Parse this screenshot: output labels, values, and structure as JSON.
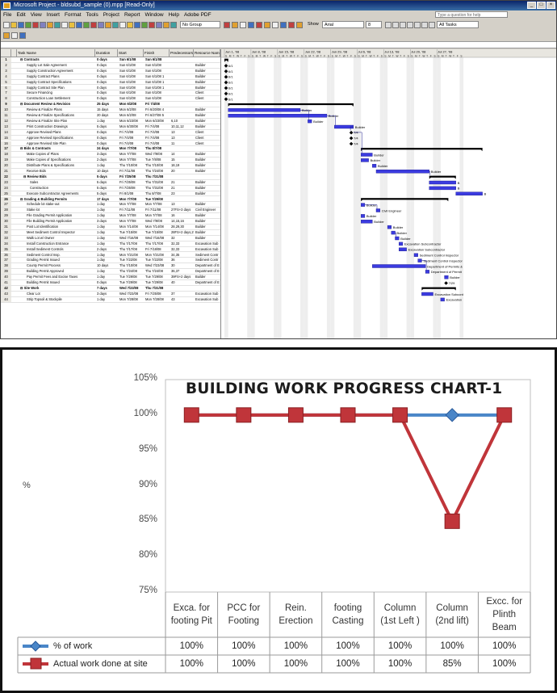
{
  "project_window": {
    "title": "Microsoft Project - bldsubd_sample (0).mpp [Read-Only]",
    "menu": [
      "File",
      "Edit",
      "View",
      "Insert",
      "Format",
      "Tools",
      "Project",
      "Report",
      "Window",
      "Help",
      "Adobe PDF"
    ],
    "help_placeholder": "Type a question for help",
    "group_combo": "No Group",
    "font_combo": "Arial",
    "size_combo": "8",
    "filter_combo": "All Tasks",
    "show_label": "Show",
    "columns": [
      "",
      "Task Name",
      "Duration",
      "Start",
      "Finish",
      "Predecessors",
      "Resource Name"
    ],
    "timescale_weeks": [
      "Jun 1, '08",
      "Jun 8, '08",
      "Jun 15, '08",
      "Jun 22, '08",
      "Jun 29, '08",
      "Jul 6, '08",
      "Jul 13, '08",
      "Jul 20, '08",
      "Jul 27, '08"
    ],
    "tasks": [
      {
        "id": "1",
        "name": "Contracts",
        "dur": "0 days",
        "start": "Sun 6/1/08",
        "finish": "Sun 6/1/08",
        "pred": "",
        "res": "",
        "summary": true,
        "indent": 0
      },
      {
        "id": "2",
        "name": "Supply Lot Sale Agreement",
        "dur": "0 days",
        "start": "Sun 6/1/08",
        "finish": "Sun 6/1/08",
        "pred": "",
        "res": "Builder",
        "summary": false,
        "indent": 2
      },
      {
        "id": "3",
        "name": "Supply Construction Agreement",
        "dur": "0 days",
        "start": "Sun 6/1/08",
        "finish": "Sun 6/1/08",
        "pred": "",
        "res": "Builder",
        "summary": false,
        "indent": 2
      },
      {
        "id": "4",
        "name": "Supply Contract Plans",
        "dur": "0 days",
        "start": "Sun 6/1/08",
        "finish": "Sun 6/1/08 1",
        "pred": "",
        "res": "Builder",
        "summary": false,
        "indent": 2
      },
      {
        "id": "5",
        "name": "Supply Contract Specifications",
        "dur": "0 days",
        "start": "Sun 6/1/08",
        "finish": "Sun 6/1/08 1",
        "pred": "",
        "res": "Builder",
        "summary": false,
        "indent": 2
      },
      {
        "id": "6",
        "name": "Supply Contract Site Plan",
        "dur": "0 days",
        "start": "Sun 6/1/08",
        "finish": "Sun 6/1/08 1",
        "pred": "",
        "res": "Builder",
        "summary": false,
        "indent": 2
      },
      {
        "id": "7",
        "name": "Secure Financing",
        "dur": "0 days",
        "start": "Sun 6/1/08",
        "finish": "Sun 6/1/08",
        "pred": "",
        "res": "Client",
        "summary": false,
        "indent": 2
      },
      {
        "id": "8",
        "name": "Construction Loan Settlement",
        "dur": "0 days",
        "start": "Sun 6/1/08",
        "finish": "Sun 6/1/08",
        "pred": "",
        "res": "Client",
        "summary": false,
        "indent": 2
      },
      {
        "id": "9",
        "name": "Document Review & Revision",
        "dur": "25 days",
        "start": "Mon 6/2/08",
        "finish": "Fri 7/4/08",
        "pred": "",
        "res": "",
        "summary": true,
        "indent": 0
      },
      {
        "id": "10",
        "name": "Review & Finalize Plans",
        "dur": "15 days",
        "start": "Mon 6/2/08",
        "finish": "Fri 6/20/08 4",
        "pred": "",
        "res": "Builder",
        "summary": false,
        "indent": 2
      },
      {
        "id": "11",
        "name": "Review & Finalize Specifications",
        "dur": "20 days",
        "start": "Mon 6/2/08",
        "finish": "Fri 6/27/08 5",
        "pred": "",
        "res": "Builder",
        "summary": false,
        "indent": 2
      },
      {
        "id": "12",
        "name": "Review & Finalize Site Plan",
        "dur": "1 day",
        "start": "Mon 6/23/08",
        "finish": "Mon 6/23/08",
        "pred": "6,10",
        "res": "Builder",
        "summary": false,
        "indent": 2
      },
      {
        "id": "13",
        "name": "Print Construction Drawings",
        "dur": "5 days",
        "start": "Mon 6/30/08",
        "finish": "Fri 7/4/08",
        "pred": "10,11,12",
        "res": "Builder",
        "summary": false,
        "indent": 2
      },
      {
        "id": "14",
        "name": "Approve Revised Plans",
        "dur": "0 days",
        "start": "Fri 7/4/08",
        "finish": "Fri 7/4/08",
        "pred": "13",
        "res": "Client",
        "summary": false,
        "indent": 2
      },
      {
        "id": "15",
        "name": "Approve Revised Specifications",
        "dur": "0 days",
        "start": "Fri 7/4/08",
        "finish": "Fri 7/4/08",
        "pred": "13",
        "res": "Client",
        "summary": false,
        "indent": 2
      },
      {
        "id": "16",
        "name": "Approve Revised Site Plan",
        "dur": "0 days",
        "start": "Fri 7/4/08",
        "finish": "Fri 7/4/08",
        "pred": "11",
        "res": "Client",
        "summary": false,
        "indent": 2
      },
      {
        "id": "17",
        "name": "Bids & Contracts",
        "dur": "24 days",
        "start": "Mon 7/7/08",
        "finish": "Thu 8/7/08",
        "pred": "",
        "res": "",
        "summary": true,
        "indent": 0
      },
      {
        "id": "18",
        "name": "Make Copies of Plans",
        "dur": "3 days",
        "start": "Mon 7/7/08",
        "finish": "Wed 7/9/08",
        "pred": "14",
        "res": "Builder",
        "summary": false,
        "indent": 2
      },
      {
        "id": "19",
        "name": "Make Copies of Specifications",
        "dur": "2 days",
        "start": "Mon 7/7/08",
        "finish": "Tue 7/8/08",
        "pred": "15",
        "res": "Builder",
        "summary": false,
        "indent": 2
      },
      {
        "id": "20",
        "name": "Distribute Plans & Specifications",
        "dur": "1 day",
        "start": "Thu 7/10/08",
        "finish": "Thu 7/10/08",
        "pred": "18,19",
        "res": "Builder",
        "summary": false,
        "indent": 2
      },
      {
        "id": "21",
        "name": "Receive Bids",
        "dur": "10 days",
        "start": "Fri 7/11/08",
        "finish": "Thu 7/24/08",
        "pred": "20",
        "res": "Builder",
        "summary": false,
        "indent": 2
      },
      {
        "id": "22",
        "name": "Review Bids",
        "dur": "5 days",
        "start": "Fri 7/25/08",
        "finish": "Thu 7/31/08",
        "pred": "",
        "res": "",
        "summary": true,
        "indent": 1
      },
      {
        "id": "23",
        "name": "Sales",
        "dur": "5 days",
        "start": "Fri 7/25/08",
        "finish": "Thu 7/31/08",
        "pred": "21",
        "res": "Builder",
        "summary": false,
        "indent": 3
      },
      {
        "id": "24",
        "name": "Construction",
        "dur": "5 days",
        "start": "Fri 7/25/08",
        "finish": "Thu 7/31/08",
        "pred": "21",
        "res": "Builder",
        "summary": false,
        "indent": 3
      },
      {
        "id": "25",
        "name": "Execute Subcontractor Agreements",
        "dur": "5 days",
        "start": "Fri 8/1/08",
        "finish": "Thu 8/7/08",
        "pred": "23",
        "res": "Builder",
        "summary": false,
        "indent": 2
      },
      {
        "id": "26",
        "name": "Grading & Building Permits",
        "dur": "17 days",
        "start": "Mon 7/7/08",
        "finish": "Tue 7/29/08",
        "pred": "",
        "res": "",
        "summary": true,
        "indent": 0
      },
      {
        "id": "27",
        "name": "Schedule lot stake-out",
        "dur": "1 day",
        "start": "Mon 7/7/08",
        "finish": "Mon 7/7/08",
        "pred": "13",
        "res": "Builder",
        "summary": false,
        "indent": 2
      },
      {
        "id": "28",
        "name": "Stake lot",
        "dur": "1 day",
        "start": "Fri 7/11/08",
        "finish": "Fri 7/11/08",
        "pred": "27FS+3 days",
        "res": "Civil Engineer",
        "summary": false,
        "indent": 2
      },
      {
        "id": "29",
        "name": "File Grading Permit Application",
        "dur": "1 day",
        "start": "Mon 7/7/08",
        "finish": "Mon 7/7/08",
        "pred": "16",
        "res": "Builder",
        "summary": false,
        "indent": 2
      },
      {
        "id": "30",
        "name": "File Building Permit Application",
        "dur": "3 days",
        "start": "Mon 7/7/08",
        "finish": "Wed 7/9/08",
        "pred": "14,15,16",
        "res": "Builder",
        "summary": false,
        "indent": 2
      },
      {
        "id": "31",
        "name": "Post Lot Identification",
        "dur": "1 day",
        "start": "Mon 7/14/08",
        "finish": "Mon 7/14/08",
        "pred": "28,29,30",
        "res": "Builder",
        "summary": false,
        "indent": 2
      },
      {
        "id": "32",
        "name": "Meet Sediment Control Inspector",
        "dur": "1 day",
        "start": "Tue 7/15/08",
        "finish": "Tue 7/15/08",
        "pred": "28FS+2 days,29",
        "res": "Builder",
        "summary": false,
        "indent": 2
      },
      {
        "id": "33",
        "name": "Walk Lot w/ Owner",
        "dur": "1 day",
        "start": "Wed 7/16/08",
        "finish": "Wed 7/16/08",
        "pred": "32",
        "res": "Builder",
        "summary": false,
        "indent": 2
      },
      {
        "id": "34",
        "name": "Install Construction Entrance",
        "dur": "1 day",
        "start": "Thu 7/17/08",
        "finish": "Thu 7/17/08",
        "pred": "32,33",
        "res": "Excavation Sub",
        "summary": false,
        "indent": 2
      },
      {
        "id": "35",
        "name": "Install Sediment Controls",
        "dur": "2 days",
        "start": "Thu 7/17/08",
        "finish": "Fri 7/18/08",
        "pred": "32,33",
        "res": "Excavation Sub",
        "summary": false,
        "indent": 2
      },
      {
        "id": "36",
        "name": "Sediment Control Insp.",
        "dur": "1 day",
        "start": "Mon 7/21/08",
        "finish": "Mon 7/21/08",
        "pred": "34,35",
        "res": "Sediment Contr",
        "summary": false,
        "indent": 2
      },
      {
        "id": "37",
        "name": "Grading Permit Issued",
        "dur": "1 day",
        "start": "Tue 7/22/08",
        "finish": "Tue 7/22/08",
        "pred": "36",
        "res": "Sediment Contr",
        "summary": false,
        "indent": 2
      },
      {
        "id": "38",
        "name": "County Permit Process",
        "dur": "10 days",
        "start": "Thu 7/10/08",
        "finish": "Wed 7/23/08",
        "pred": "30",
        "res": "Department of E",
        "summary": false,
        "indent": 2
      },
      {
        "id": "39",
        "name": "Building Permit Approved",
        "dur": "1 day",
        "start": "Thu 7/24/08",
        "finish": "Thu 7/24/08",
        "pred": "36,37",
        "res": "Department of E",
        "summary": false,
        "indent": 2
      },
      {
        "id": "40",
        "name": "Pay Permit Fees and Excise Taxes",
        "dur": "1 day",
        "start": "Tue 7/29/08",
        "finish": "Tue 7/29/08",
        "pred": "39FS+2 days",
        "res": "Builder",
        "summary": false,
        "indent": 2
      },
      {
        "id": "41",
        "name": "Building Permit Issued",
        "dur": "0 days",
        "start": "Tue 7/29/08",
        "finish": "Tue 7/29/08",
        "pred": "40",
        "res": "Department of E",
        "summary": false,
        "indent": 2
      },
      {
        "id": "42",
        "name": "Site Work",
        "dur": "7 days",
        "start": "Wed 7/23/08",
        "finish": "Thu 7/31/08",
        "pred": "",
        "res": "",
        "summary": true,
        "indent": 0
      },
      {
        "id": "43",
        "name": "Clear Lot",
        "dur": "3 days",
        "start": "Wed 7/23/08",
        "finish": "Fri 7/25/08",
        "pred": "37",
        "res": "Excavation Sub",
        "summary": false,
        "indent": 2
      },
      {
        "id": "44",
        "name": "Strip Topsoil & Stockpile",
        "dur": "1 day",
        "start": "Mon 7/28/08",
        "finish": "Mon 7/28/08",
        "pred": "43",
        "res": "Excavation Sub",
        "summary": false,
        "indent": 2
      }
    ],
    "gantt_labels": [
      {
        "row": 1,
        "text": "6/1"
      },
      {
        "row": 2,
        "text": "6/1"
      },
      {
        "row": 3,
        "text": "6/1"
      },
      {
        "row": 4,
        "text": "6/1"
      },
      {
        "row": 5,
        "text": "6/1"
      },
      {
        "row": 6,
        "text": "6/1"
      },
      {
        "row": 7,
        "text": "6/1"
      },
      {
        "row": 9,
        "text": "Builder"
      },
      {
        "row": 10,
        "text": "Builder"
      },
      {
        "row": 11,
        "text": "Builder"
      },
      {
        "row": 12,
        "text": "Builder"
      },
      {
        "row": 13,
        "text": "7/4"
      },
      {
        "row": 14,
        "text": "7/4"
      },
      {
        "row": 15,
        "text": "7/4"
      },
      {
        "row": 17,
        "text": "Builder"
      },
      {
        "row": 18,
        "text": "Builder"
      },
      {
        "row": 19,
        "text": "Builder"
      },
      {
        "row": 20,
        "text": "Builder"
      },
      {
        "row": 22,
        "text": "B"
      },
      {
        "row": 23,
        "text": "B"
      },
      {
        "row": 24,
        "text": "B"
      },
      {
        "row": 26,
        "text": "Builder"
      },
      {
        "row": 27,
        "text": "Civil Engineer"
      },
      {
        "row": 28,
        "text": "Builder"
      },
      {
        "row": 29,
        "text": "Builder"
      },
      {
        "row": 30,
        "text": "Builder"
      },
      {
        "row": 31,
        "text": "Builder"
      },
      {
        "row": 32,
        "text": "Builder"
      },
      {
        "row": 33,
        "text": "Excavation Subcontractor"
      },
      {
        "row": 34,
        "text": "Excavation Subcontractor"
      },
      {
        "row": 35,
        "text": "Sediment Control Inspector"
      },
      {
        "row": 36,
        "text": "Sediment Control Inspector"
      },
      {
        "row": 37,
        "text": "Department of Permits &"
      },
      {
        "row": 38,
        "text": "Department of Permit"
      },
      {
        "row": 39,
        "text": "Builder"
      },
      {
        "row": 40,
        "text": "7/29"
      },
      {
        "row": 42,
        "text": "Excavation Subcont"
      },
      {
        "row": 43,
        "text": "Excavation"
      }
    ]
  },
  "chart_data": {
    "type": "line",
    "title": "BUILDING WORK PROGRESS CHART-1",
    "xlabel": "",
    "ylabel": "%",
    "ylim": [
      75,
      105
    ],
    "yticks": [
      "105%",
      "100%",
      "95%",
      "90%",
      "85%",
      "80%",
      "75%"
    ],
    "ytick_values": [
      105,
      100,
      95,
      90,
      85,
      80,
      75
    ],
    "grid": false,
    "legend": "data table",
    "categories": [
      "Exca. for footing Pit",
      "PCC for Footing",
      "Rein. Erection",
      "footing Casting",
      "Column (1st Left )",
      "Column (2nd lift)",
      "Excc. for Plinth Beam"
    ],
    "category_lines": [
      [
        "Exca. for",
        "footing Pit"
      ],
      [
        "PCC for",
        "Footing"
      ],
      [
        "Rein.",
        "Erection"
      ],
      [
        "footing",
        "Casting"
      ],
      [
        "Column",
        "(1st Left )"
      ],
      [
        "Column",
        "(2nd lift)"
      ],
      [
        "Excc. for",
        "Plinth",
        "Beam"
      ]
    ],
    "series": [
      {
        "name": "% of work",
        "values": [
          100,
          100,
          100,
          100,
          100,
          100,
          100
        ],
        "labels": [
          "100%",
          "100%",
          "100%",
          "100%",
          "100%",
          "100%",
          "100%"
        ],
        "color": "#4a86c8",
        "marker": "diamond"
      },
      {
        "name": "Actual work done at site",
        "values": [
          100,
          100,
          100,
          100,
          100,
          85,
          100
        ],
        "labels": [
          "100%",
          "100%",
          "100%",
          "100%",
          "100%",
          "85%",
          "100%"
        ],
        "color": "#c0353a",
        "marker": "square"
      }
    ]
  }
}
